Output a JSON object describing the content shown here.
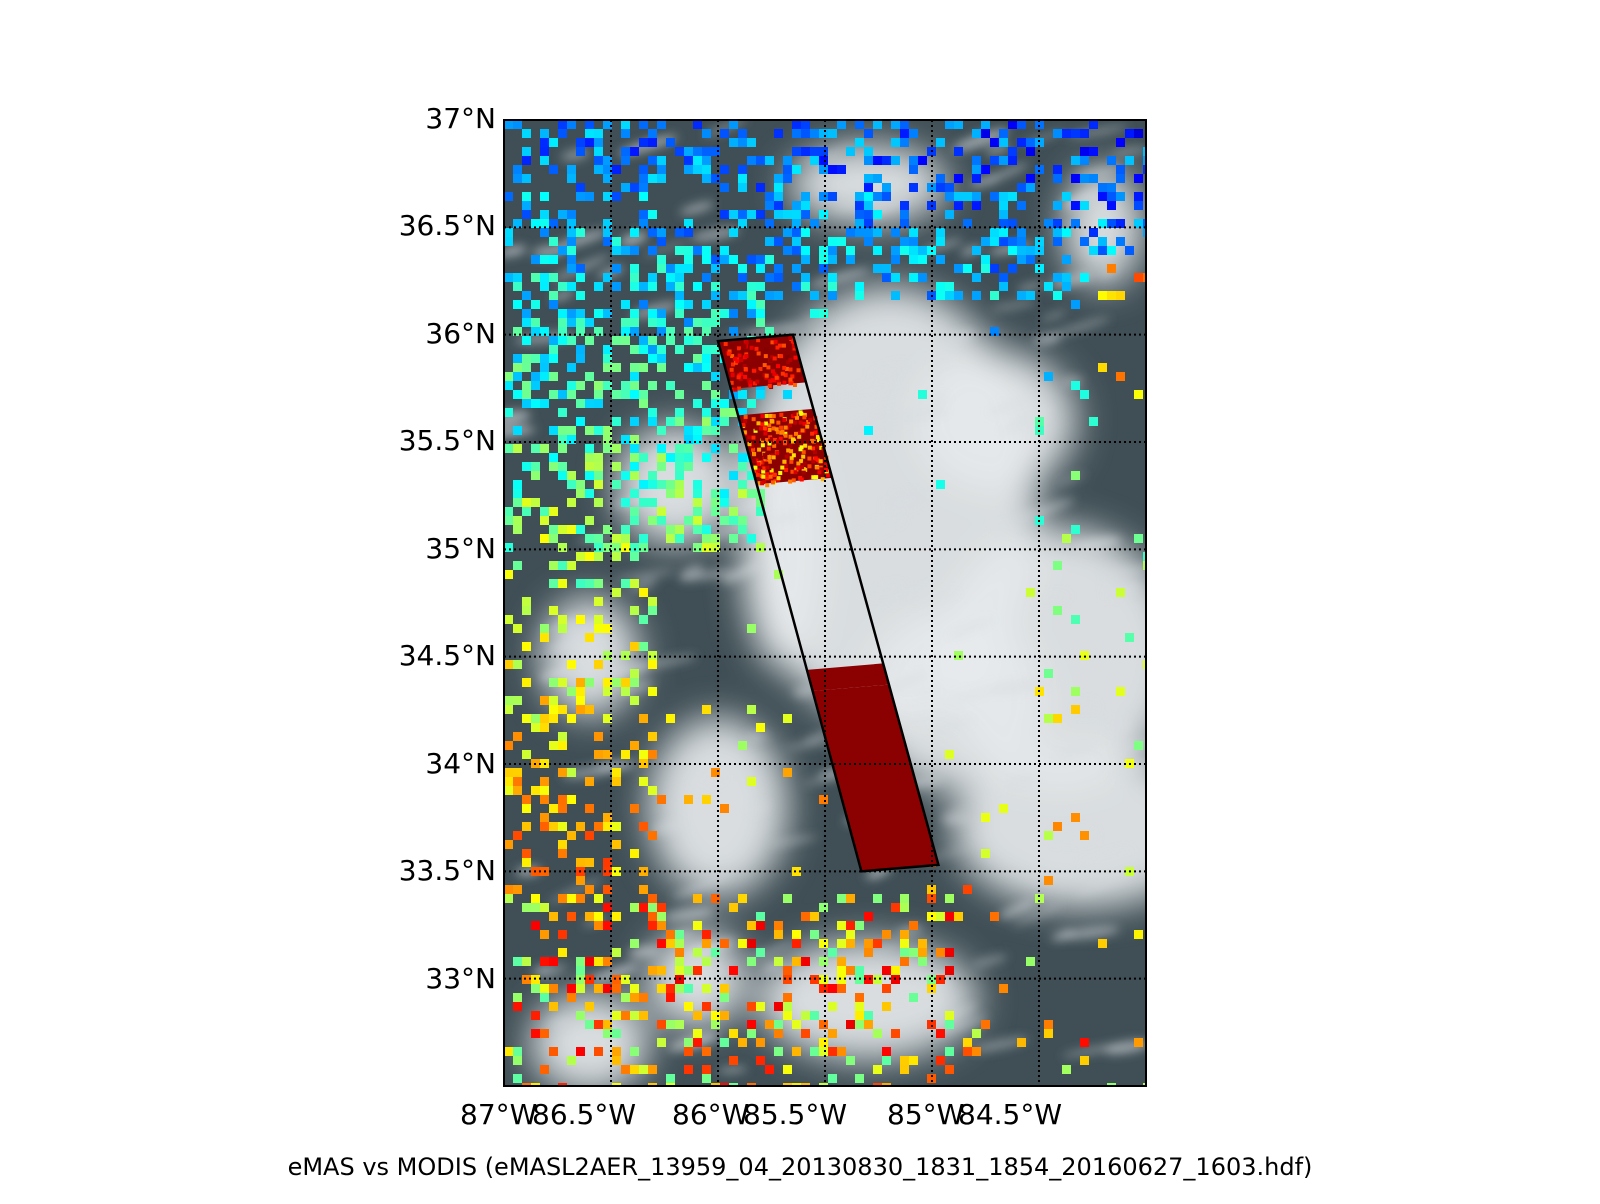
{
  "map": {
    "caption": "eMAS vs MODIS (eMASL2AER_13959_04_20130830_1831_1854_20160627_1603.hdf)",
    "lat_ticks": [
      "37°N",
      "36.5°N",
      "36°N",
      "35.5°N",
      "35°N",
      "34.5°N",
      "34°N",
      "33.5°N",
      "33°N"
    ],
    "lon_ticks": [
      "87°W",
      "86.5°W",
      "86°W",
      "85.5°W",
      "85°W",
      "84.5°W"
    ],
    "extent": {
      "lon": [
        -87.0,
        -84.0
      ],
      "lat": [
        32.5,
        37.0
      ]
    },
    "gridlines": "dotted",
    "colors": {
      "ocean_dark": "#3f4f55",
      "cloud": "#e6e9ec",
      "swath_outline": "#000000",
      "swath_fill": "#8b0000",
      "colormap": "jet"
    },
    "swath_corners_lonlat": [
      [
        -86.0,
        35.97
      ],
      [
        -85.65,
        36.0
      ],
      [
        -84.97,
        33.53
      ],
      [
        -85.33,
        33.5
      ]
    ]
  }
}
